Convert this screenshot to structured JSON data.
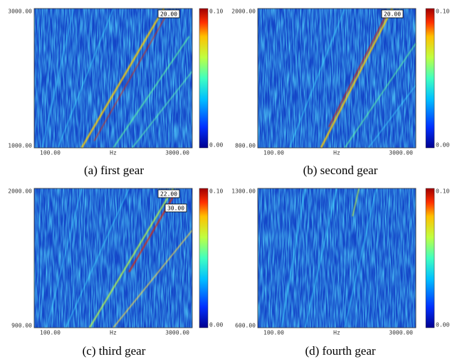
{
  "panels": [
    {
      "caption": "(a) first gear",
      "y_top": "3000.00",
      "y_bottom": "1000.00",
      "x_left": "100.00",
      "x_mid": "Hz",
      "x_right": "3000.00",
      "scale_top": "0.10",
      "scale_bottom": "0.00",
      "markers": [
        "20.00"
      ]
    },
    {
      "caption": "(b) second gear",
      "y_top": "2000.00",
      "y_bottom": "800.00",
      "x_left": "100.00",
      "x_mid": "Hz",
      "x_right": "3000.00",
      "scale_top": "0.10",
      "scale_bottom": "0.00",
      "markers": [
        "20.00"
      ]
    },
    {
      "caption": "(c) third gear",
      "y_top": "2000.00",
      "y_bottom": "900.00",
      "x_left": "100.00",
      "x_mid": "Hz",
      "x_right": "3000.00",
      "scale_top": "0.10",
      "scale_bottom": "0.00",
      "markers": [
        "22.00",
        "30.00"
      ]
    },
    {
      "caption": "(d) fourth gear",
      "y_top": "1300.00",
      "y_bottom": "600.00",
      "x_left": "100.00",
      "x_mid": "Hz",
      "x_right": "3000.00",
      "scale_top": "0.10",
      "scale_bottom": "0.00",
      "markers": []
    }
  ]
}
